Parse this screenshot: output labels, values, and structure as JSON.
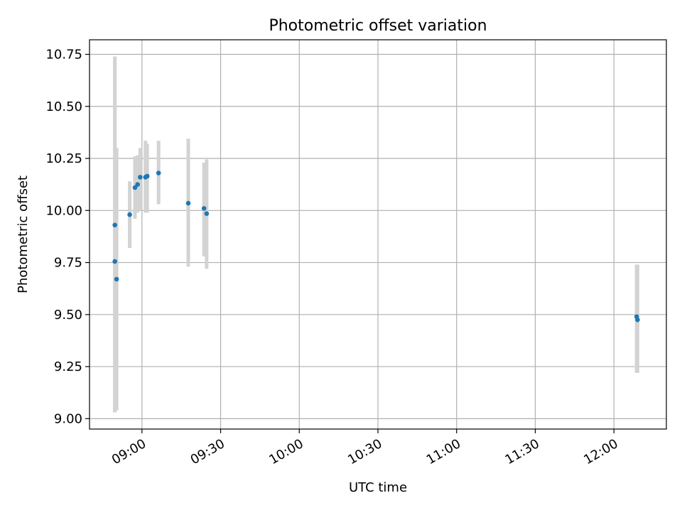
{
  "chart_data": {
    "type": "scatter",
    "title": "Photometric offset variation",
    "xlabel": "UTC time",
    "ylabel": "Photometric offset",
    "xlim": [
      "08:40",
      "12:20"
    ],
    "ylim": [
      8.95,
      10.82
    ],
    "x_ticks": [
      "09:00",
      "09:30",
      "10:00",
      "10:30",
      "11:00",
      "11:30",
      "12:00"
    ],
    "y_ticks": [
      "9.00",
      "9.25",
      "9.50",
      "9.75",
      "10.00",
      "10.25",
      "10.50",
      "10.75"
    ],
    "grid": true,
    "marker_color": "#1f77b4",
    "errorbar_color": "#d3d3d3",
    "series": [
      {
        "points": [
          {
            "x": "08:49:40",
            "y": 9.93,
            "ylow": 9.03,
            "yhigh": 10.74
          },
          {
            "x": "08:49:40",
            "y": 9.755,
            "ylow": 9.03,
            "yhigh": 10.74
          },
          {
            "x": "08:50:20",
            "y": 9.67,
            "ylow": 9.04,
            "yhigh": 10.3
          },
          {
            "x": "08:55:20",
            "y": 9.98,
            "ylow": 9.82,
            "yhigh": 10.14
          },
          {
            "x": "08:57:20",
            "y": 10.11,
            "ylow": 9.96,
            "yhigh": 10.26
          },
          {
            "x": "08:58:20",
            "y": 10.125,
            "ylow": 9.99,
            "yhigh": 10.265
          },
          {
            "x": "08:59:20",
            "y": 10.16,
            "ylow": 10.0,
            "yhigh": 10.3
          },
          {
            "x": "09:01:20",
            "y": 10.16,
            "ylow": 9.99,
            "yhigh": 10.335
          },
          {
            "x": "09:02:00",
            "y": 10.165,
            "ylow": 9.99,
            "yhigh": 10.32
          },
          {
            "x": "09:06:20",
            "y": 10.18,
            "ylow": 10.03,
            "yhigh": 10.335
          },
          {
            "x": "09:17:40",
            "y": 10.035,
            "ylow": 9.73,
            "yhigh": 10.345
          },
          {
            "x": "09:23:40",
            "y": 10.01,
            "ylow": 9.78,
            "yhigh": 10.23
          },
          {
            "x": "09:24:40",
            "y": 9.985,
            "ylow": 9.72,
            "yhigh": 10.245
          },
          {
            "x": "12:08:40",
            "y": 9.49,
            "ylow": 9.22,
            "yhigh": 9.74
          },
          {
            "x": "12:09:00",
            "y": 9.475,
            "ylow": 9.22,
            "yhigh": 9.74
          }
        ]
      }
    ]
  }
}
